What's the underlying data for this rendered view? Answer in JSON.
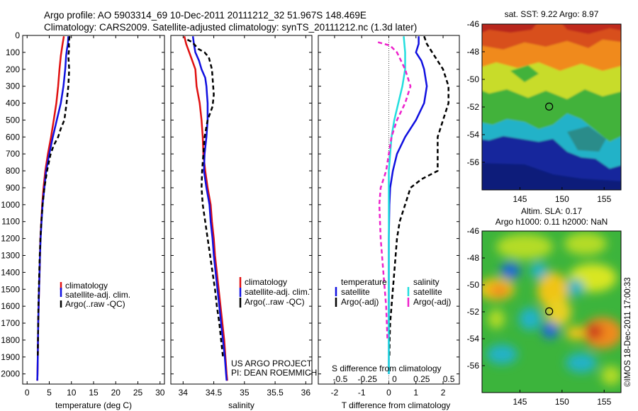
{
  "header": {
    "line1": "Argo profile: AO 5903314_69 10-Dec-2011 20111212_32 51.967S 148.469E",
    "line2": "Climatology: CARS2009. Satellite-adjusted climatology: synTS_20111212.nc (1.3d later)"
  },
  "credits": {
    "project": "US ARGO PROJECT",
    "pi": "PI: DEAN ROEMMICH",
    "imos": "©IMOS 18-Dec-2011 17:00:33"
  },
  "colors": {
    "climatology": "#e01010",
    "satellite": "#1010e0",
    "argo": "#000000",
    "sat_salinity": "#22dede",
    "argo_salinity": "#ee22cc"
  },
  "chart_data": [
    {
      "type": "line",
      "panel": "temperature",
      "xlabel": "temperature (deg C)",
      "xlim": [
        -1,
        31
      ],
      "xticks": [
        0,
        5,
        10,
        15,
        20,
        25,
        30
      ],
      "ylim": [
        2060,
        0
      ],
      "yticks": [
        0,
        100,
        200,
        300,
        400,
        500,
        600,
        700,
        800,
        900,
        1000,
        1100,
        1200,
        1300,
        1400,
        1500,
        1600,
        1700,
        1800,
        1900,
        2000
      ],
      "legend": [
        "climatology",
        "satellite-adj. clim.",
        "Argo(..raw -QC)"
      ],
      "series": [
        {
          "key": "climatology",
          "color": "#e01010",
          "dash": "",
          "points": [
            [
              8.3,
              5
            ],
            [
              8.0,
              50
            ],
            [
              7.6,
              120
            ],
            [
              7.3,
              200
            ],
            [
              7.0,
              300
            ],
            [
              6.6,
              400
            ],
            [
              6.0,
              500
            ],
            [
              5.4,
              600
            ],
            [
              4.7,
              700
            ],
            [
              4.1,
              800
            ],
            [
              3.7,
              900
            ],
            [
              3.4,
              1000
            ],
            [
              3.2,
              1100
            ],
            [
              3.0,
              1200
            ],
            [
              2.9,
              1300
            ],
            [
              2.8,
              1400
            ],
            [
              2.7,
              1500
            ],
            [
              2.6,
              1600
            ],
            [
              2.5,
              1700
            ],
            [
              2.45,
              1800
            ],
            [
              2.4,
              1900
            ],
            [
              2.35,
              2000
            ],
            [
              2.3,
              2040
            ]
          ]
        },
        {
          "key": "satellite",
          "color": "#1010e0",
          "dash": "",
          "points": [
            [
              9.3,
              5
            ],
            [
              9.2,
              50
            ],
            [
              9.0,
              80
            ],
            [
              8.8,
              120
            ],
            [
              8.6,
              200
            ],
            [
              8.2,
              300
            ],
            [
              7.6,
              400
            ],
            [
              6.7,
              500
            ],
            [
              5.8,
              600
            ],
            [
              5.0,
              700
            ],
            [
              4.3,
              800
            ],
            [
              3.9,
              900
            ],
            [
              3.5,
              1000
            ],
            [
              3.25,
              1100
            ],
            [
              3.05,
              1200
            ],
            [
              2.9,
              1300
            ],
            [
              2.8,
              1400
            ],
            [
              2.7,
              1500
            ],
            [
              2.6,
              1600
            ],
            [
              2.5,
              1700
            ],
            [
              2.45,
              1800
            ],
            [
              2.4,
              1900
            ],
            [
              2.35,
              2000
            ],
            [
              2.3,
              2040
            ]
          ]
        },
        {
          "key": "argo",
          "color": "#000000",
          "dash": "6,4",
          "points": [
            [
              9.6,
              5
            ],
            [
              9.4,
              40
            ],
            [
              9.5,
              80
            ],
            [
              9.3,
              120
            ],
            [
              9.5,
              200
            ],
            [
              9.3,
              300
            ],
            [
              8.9,
              400
            ],
            [
              8.4,
              500
            ],
            [
              7.6,
              550
            ],
            [
              7.0,
              600
            ],
            [
              6.0,
              650
            ],
            [
              5.3,
              700
            ],
            [
              4.5,
              800
            ],
            [
              3.9,
              900
            ],
            [
              3.5,
              1000
            ],
            [
              3.2,
              1100
            ],
            [
              3.0,
              1200
            ],
            [
              2.85,
              1300
            ],
            [
              2.75,
              1400
            ],
            [
              2.65,
              1500
            ],
            [
              2.55,
              1600
            ],
            [
              2.5,
              1700
            ],
            [
              2.45,
              1800
            ],
            [
              2.4,
              1900
            ]
          ]
        }
      ]
    },
    {
      "type": "line",
      "panel": "salinity",
      "xlabel": "salinity",
      "xlim": [
        33.8,
        36.1
      ],
      "xticks": [
        34,
        34.5,
        35,
        35.5,
        36
      ],
      "xticklabels": [
        "34",
        "34.5",
        "35",
        "35.5",
        "36"
      ],
      "ylim": [
        2060,
        0
      ],
      "legend": [
        "climatology",
        "satellite-adj. clim.",
        "Argo(..raw -QC)"
      ],
      "series": [
        {
          "key": "climatology",
          "color": "#e01010",
          "dash": "",
          "points": [
            [
              34.02,
              5
            ],
            [
              34.05,
              50
            ],
            [
              34.1,
              100
            ],
            [
              34.15,
              150
            ],
            [
              34.2,
              200
            ],
            [
              34.22,
              300
            ],
            [
              34.27,
              400
            ],
            [
              34.3,
              500
            ],
            [
              34.32,
              600
            ],
            [
              34.33,
              700
            ],
            [
              34.36,
              800
            ],
            [
              34.4,
              900
            ],
            [
              34.45,
              1000
            ],
            [
              34.47,
              1100
            ],
            [
              34.5,
              1200
            ],
            [
              34.52,
              1300
            ],
            [
              34.55,
              1400
            ],
            [
              34.58,
              1500
            ],
            [
              34.61,
              1600
            ],
            [
              34.64,
              1700
            ],
            [
              34.67,
              1800
            ],
            [
              34.69,
              1900
            ],
            [
              34.71,
              2000
            ],
            [
              34.72,
              2040
            ]
          ]
        },
        {
          "key": "satellite",
          "color": "#1010e0",
          "dash": "",
          "points": [
            [
              34.16,
              5
            ],
            [
              34.18,
              60
            ],
            [
              34.2,
              100
            ],
            [
              34.26,
              150
            ],
            [
              34.3,
              200
            ],
            [
              34.36,
              250
            ],
            [
              34.38,
              300
            ],
            [
              34.39,
              350
            ],
            [
              34.4,
              400
            ],
            [
              34.4,
              500
            ],
            [
              34.38,
              600
            ],
            [
              34.35,
              700
            ],
            [
              34.34,
              800
            ],
            [
              34.38,
              900
            ],
            [
              34.43,
              1000
            ],
            [
              34.45,
              1100
            ],
            [
              34.48,
              1200
            ],
            [
              34.5,
              1300
            ],
            [
              34.53,
              1400
            ],
            [
              34.56,
              1500
            ],
            [
              34.59,
              1600
            ],
            [
              34.62,
              1700
            ],
            [
              34.65,
              1800
            ],
            [
              34.68,
              1900
            ],
            [
              34.7,
              2000
            ],
            [
              34.71,
              2040
            ]
          ]
        },
        {
          "key": "argo",
          "color": "#000000",
          "dash": "6,4",
          "points": [
            [
              34.07,
              25
            ],
            [
              34.15,
              40
            ],
            [
              34.2,
              60
            ],
            [
              34.25,
              80
            ],
            [
              34.35,
              100
            ],
            [
              34.42,
              130
            ],
            [
              34.47,
              200
            ],
            [
              34.49,
              300
            ],
            [
              34.5,
              350
            ],
            [
              34.48,
              420
            ],
            [
              34.4,
              500
            ],
            [
              34.35,
              600
            ],
            [
              34.33,
              700
            ],
            [
              34.31,
              800
            ],
            [
              34.3,
              900
            ],
            [
              34.32,
              1000
            ],
            [
              34.36,
              1100
            ],
            [
              34.4,
              1200
            ],
            [
              34.44,
              1300
            ],
            [
              34.48,
              1400
            ],
            [
              34.52,
              1500
            ],
            [
              34.55,
              1600
            ],
            [
              34.59,
              1700
            ],
            [
              34.62,
              1800
            ],
            [
              34.65,
              1900
            ]
          ]
        }
      ]
    },
    {
      "type": "line",
      "panel": "difference",
      "xlabel": "T difference from climatology",
      "xlabel_top": "S difference from climatology",
      "xlim": [
        -2.6,
        2.6
      ],
      "xticks": [
        -2,
        -1,
        0,
        1,
        2
      ],
      "s_ticklabels": [
        "-0.5",
        "-0.25",
        "0",
        "0.25",
        "0.5"
      ],
      "ylim": [
        2060,
        0
      ],
      "legend_temperature_title": "temperature",
      "legend_salinity_title": "salinity",
      "legend": [
        "satellite",
        "Argo(-adj)",
        "satellite",
        "Argo(-adj)"
      ],
      "series": [
        {
          "key": "t_satellite",
          "color": "#1010e0",
          "dash": "",
          "points": [
            [
              1.1,
              5
            ],
            [
              1.1,
              50
            ],
            [
              1.0,
              100
            ],
            [
              1.2,
              150
            ],
            [
              1.3,
              200
            ],
            [
              1.4,
              300
            ],
            [
              1.3,
              400
            ],
            [
              1.0,
              500
            ],
            [
              0.6,
              600
            ],
            [
              0.3,
              700
            ],
            [
              0.15,
              800
            ],
            [
              0.05,
              900
            ],
            [
              0.02,
              1000
            ],
            [
              0.0,
              1200
            ],
            [
              0.0,
              1500
            ],
            [
              0.0,
              2000
            ]
          ]
        },
        {
          "key": "t_argo",
          "color": "#000000",
          "dash": "6,4",
          "points": [
            [
              1.3,
              5
            ],
            [
              1.4,
              50
            ],
            [
              1.6,
              100
            ],
            [
              2.0,
              200
            ],
            [
              2.2,
              300
            ],
            [
              2.2,
              400
            ],
            [
              2.0,
              500
            ],
            [
              1.8,
              600
            ],
            [
              1.8,
              700
            ],
            [
              1.8,
              800
            ],
            [
              1.2,
              850
            ],
            [
              0.8,
              900
            ],
            [
              0.6,
              1000
            ],
            [
              0.4,
              1100
            ],
            [
              0.3,
              1200
            ],
            [
              0.25,
              1300
            ],
            [
              0.2,
              1400
            ],
            [
              0.15,
              1500
            ],
            [
              0.1,
              1600
            ],
            [
              0.05,
              1700
            ],
            [
              0.03,
              1800
            ],
            [
              0.02,
              1900
            ]
          ]
        },
        {
          "key": "s_satellite",
          "color": "#22dede",
          "dash": "",
          "points": [
            [
              0.55,
              5
            ],
            [
              0.6,
              100
            ],
            [
              0.6,
              200
            ],
            [
              0.5,
              300
            ],
            [
              0.35,
              400
            ],
            [
              0.2,
              500
            ],
            [
              0.1,
              600
            ],
            [
              0.05,
              700
            ],
            [
              0.0,
              800
            ],
            [
              0.0,
              1000
            ],
            [
              0.0,
              1500
            ],
            [
              0.0,
              2000
            ]
          ]
        },
        {
          "key": "s_argo",
          "color": "#ee22cc",
          "dash": "6,4",
          "points": [
            [
              -0.4,
              40
            ],
            [
              0.05,
              60
            ],
            [
              0.3,
              100
            ],
            [
              0.6,
              200
            ],
            [
              0.8,
              300
            ],
            [
              0.6,
              400
            ],
            [
              0.3,
              500
            ],
            [
              0.1,
              600
            ],
            [
              -0.1,
              800
            ],
            [
              -0.3,
              900
            ],
            [
              -0.35,
              1000
            ],
            [
              -0.3,
              1200
            ],
            [
              -0.2,
              1400
            ],
            [
              -0.1,
              1600
            ],
            [
              -0.05,
              1800
            ]
          ]
        }
      ]
    },
    {
      "type": "heatmap",
      "panel": "sst_map",
      "title": "sat. SST: 9.22  Argo: 8.97",
      "xticks": [
        145,
        150,
        155
      ],
      "yticks": [
        -46,
        -48,
        -50,
        -52,
        -54,
        -56
      ],
      "xlim": [
        140.5,
        157.0
      ],
      "ylim": [
        -58,
        -46
      ],
      "marker": {
        "lon": 148.469,
        "lat": -51.967
      }
    },
    {
      "type": "heatmap",
      "panel": "sla_map",
      "title": "Altim. SLA: 0.17",
      "subtitle": "Argo h1000: 0.11  h2000: NaN",
      "xticks": [
        145,
        150,
        155
      ],
      "yticks": [
        -46,
        -48,
        -50,
        -52,
        -54,
        -56
      ],
      "xlim": [
        140.5,
        157.0
      ],
      "ylim": [
        -58,
        -46
      ],
      "marker": {
        "lon": 148.469,
        "lat": -51.967
      }
    }
  ]
}
